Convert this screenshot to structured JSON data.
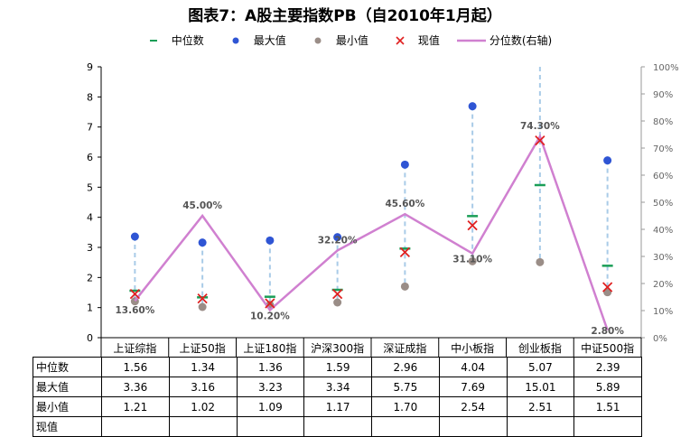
{
  "title": "图表7：A股主要指数PB（自2010年1月起）",
  "legend": [
    {
      "label": "中位数",
      "symbol": "dash",
      "color": "#1a9e57"
    },
    {
      "label": "最大值",
      "symbol": "dot",
      "color": "#2f55d4"
    },
    {
      "label": "最小值",
      "symbol": "dot",
      "color": "#9a8d87"
    },
    {
      "label": "现值",
      "symbol": "cross",
      "color": "#e02020"
    },
    {
      "label": "分位数(右轴)",
      "symbol": "line",
      "color": "#d080d0"
    }
  ],
  "chart_data": {
    "type": "line",
    "categories": [
      "上证综指",
      "上证50指",
      "上证180指",
      "沪深300指",
      "深证成指",
      "中小板指",
      "创业板指",
      "中证500指"
    ],
    "y_left": {
      "min": 0,
      "max": 9,
      "ticks": [
        "0",
        "1",
        "2",
        "3",
        "4",
        "5",
        "6",
        "7",
        "8",
        "9"
      ]
    },
    "y_right": {
      "min": 0,
      "max": 100,
      "ticks": [
        "0%",
        "10%",
        "20%",
        "30%",
        "40%",
        "50%",
        "60%",
        "70%",
        "80%",
        "90%",
        "100%"
      ]
    },
    "series": [
      {
        "name": "中位数",
        "values": [
          1.56,
          1.34,
          1.36,
          1.59,
          2.96,
          4.04,
          5.07,
          2.39
        ]
      },
      {
        "name": "最大值",
        "values": [
          3.36,
          3.16,
          3.23,
          3.34,
          5.75,
          7.69,
          15.01,
          5.89
        ]
      },
      {
        "name": "最小值",
        "values": [
          1.21,
          1.02,
          1.09,
          1.17,
          1.7,
          2.54,
          2.51,
          1.51
        ]
      },
      {
        "name": "现值",
        "values": [
          1.45,
          1.3,
          1.14,
          1.45,
          2.84,
          3.73,
          6.55,
          1.68
        ]
      },
      {
        "name": "分位数(右轴)",
        "axis": "right",
        "values": [
          13.6,
          45.0,
          10.2,
          32.2,
          45.6,
          31.1,
          74.3,
          2.8
        ],
        "labels": [
          "13.60%",
          "45.00%",
          "10.20%",
          "32.20%",
          "45.60%",
          "31.10%",
          "74.30%",
          "2.80%"
        ]
      }
    ]
  },
  "table": {
    "rows": [
      {
        "label": "中位数",
        "values": [
          "1.56",
          "1.34",
          "1.36",
          "1.59",
          "2.96",
          "4.04",
          "5.07",
          "2.39"
        ]
      },
      {
        "label": "最大值",
        "values": [
          "3.36",
          "3.16",
          "3.23",
          "3.34",
          "5.75",
          "7.69",
          "15.01",
          "5.89"
        ]
      },
      {
        "label": "最小值",
        "values": [
          "1.21",
          "1.02",
          "1.09",
          "1.17",
          "1.70",
          "2.54",
          "2.51",
          "1.51"
        ]
      },
      {
        "label": "现值",
        "values": [
          "",
          "",
          "",
          "",
          "",
          "",
          "",
          ""
        ]
      }
    ]
  }
}
